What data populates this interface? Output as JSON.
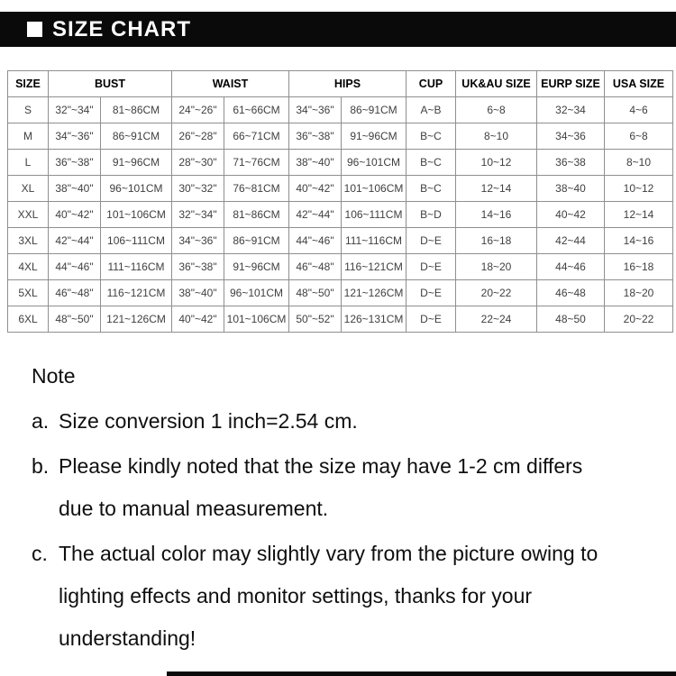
{
  "colors": {
    "banner_bg": "#0a0a0a",
    "banner_text": "#ffffff",
    "table_border": "#8f8f8f",
    "table_header_text": "#000000",
    "table_cell_text": "#404040",
    "note_text": "#0f0f0f"
  },
  "chart_data": {
    "type": "table",
    "title": "SIZE CHART",
    "header_groups": [
      {
        "label": "SIZE",
        "span": 1
      },
      {
        "label": "BUST",
        "span": 2
      },
      {
        "label": "WAIST",
        "span": 2
      },
      {
        "label": "HIPS",
        "span": 2
      },
      {
        "label": "CUP",
        "span": 1
      },
      {
        "label": "UK&AU SIZE",
        "span": 1
      },
      {
        "label": "EURP SIZE",
        "span": 1
      },
      {
        "label": "USA SIZE",
        "span": 1
      }
    ],
    "columns": [
      "SIZE",
      "BUST (inch)",
      "BUST (cm)",
      "WAIST (inch)",
      "WAIST (cm)",
      "HIPS (inch)",
      "HIPS (cm)",
      "CUP",
      "UK&AU SIZE",
      "EURP SIZE",
      "USA SIZE"
    ],
    "rows": [
      [
        "S",
        "32\"~34\"",
        "81~86CM",
        "24\"~26\"",
        "61~66CM",
        "34\"~36\"",
        "86~91CM",
        "A~B",
        "6~8",
        "32~34",
        "4~6"
      ],
      [
        "M",
        "34\"~36\"",
        "86~91CM",
        "26\"~28\"",
        "66~71CM",
        "36\"~38\"",
        "91~96CM",
        "B~C",
        "8~10",
        "34~36",
        "6~8"
      ],
      [
        "L",
        "36\"~38\"",
        "91~96CM",
        "28\"~30\"",
        "71~76CM",
        "38\"~40\"",
        "96~101CM",
        "B~C",
        "10~12",
        "36~38",
        "8~10"
      ],
      [
        "XL",
        "38\"~40\"",
        "96~101CM",
        "30\"~32\"",
        "76~81CM",
        "40\"~42\"",
        "101~106CM",
        "B~C",
        "12~14",
        "38~40",
        "10~12"
      ],
      [
        "XXL",
        "40\"~42\"",
        "101~106CM",
        "32\"~34\"",
        "81~86CM",
        "42\"~44\"",
        "106~111CM",
        "B~D",
        "14~16",
        "40~42",
        "12~14"
      ],
      [
        "3XL",
        "42\"~44\"",
        "106~111CM",
        "34\"~36\"",
        "86~91CM",
        "44\"~46\"",
        "111~116CM",
        "D~E",
        "16~18",
        "42~44",
        "14~16"
      ],
      [
        "4XL",
        "44\"~46\"",
        "111~116CM",
        "36\"~38\"",
        "91~96CM",
        "46\"~48\"",
        "116~121CM",
        "D~E",
        "18~20",
        "44~46",
        "16~18"
      ],
      [
        "5XL",
        "46\"~48\"",
        "116~121CM",
        "38\"~40\"",
        "96~101CM",
        "48\"~50\"",
        "121~126CM",
        "D~E",
        "20~22",
        "46~48",
        "18~20"
      ],
      [
        "6XL",
        "48\"~50\"",
        "121~126CM",
        "40\"~42\"",
        "101~106CM",
        "50\"~52\"",
        "126~131CM",
        "D~E",
        "22~24",
        "48~50",
        "20~22"
      ]
    ]
  },
  "notes": {
    "title": "Note",
    "items": [
      {
        "prefix": "a.",
        "lines": [
          "Size conversion 1 inch=2.54 cm."
        ]
      },
      {
        "prefix": "b.",
        "lines": [
          "Please kindly noted that the size may have 1-2 cm differs",
          "due to manual measurement."
        ]
      },
      {
        "prefix": "c.",
        "lines": [
          "The actual color may slightly vary from the picture owing to",
          "lighting effects and monitor settings, thanks for your",
          "understanding!"
        ]
      }
    ]
  }
}
